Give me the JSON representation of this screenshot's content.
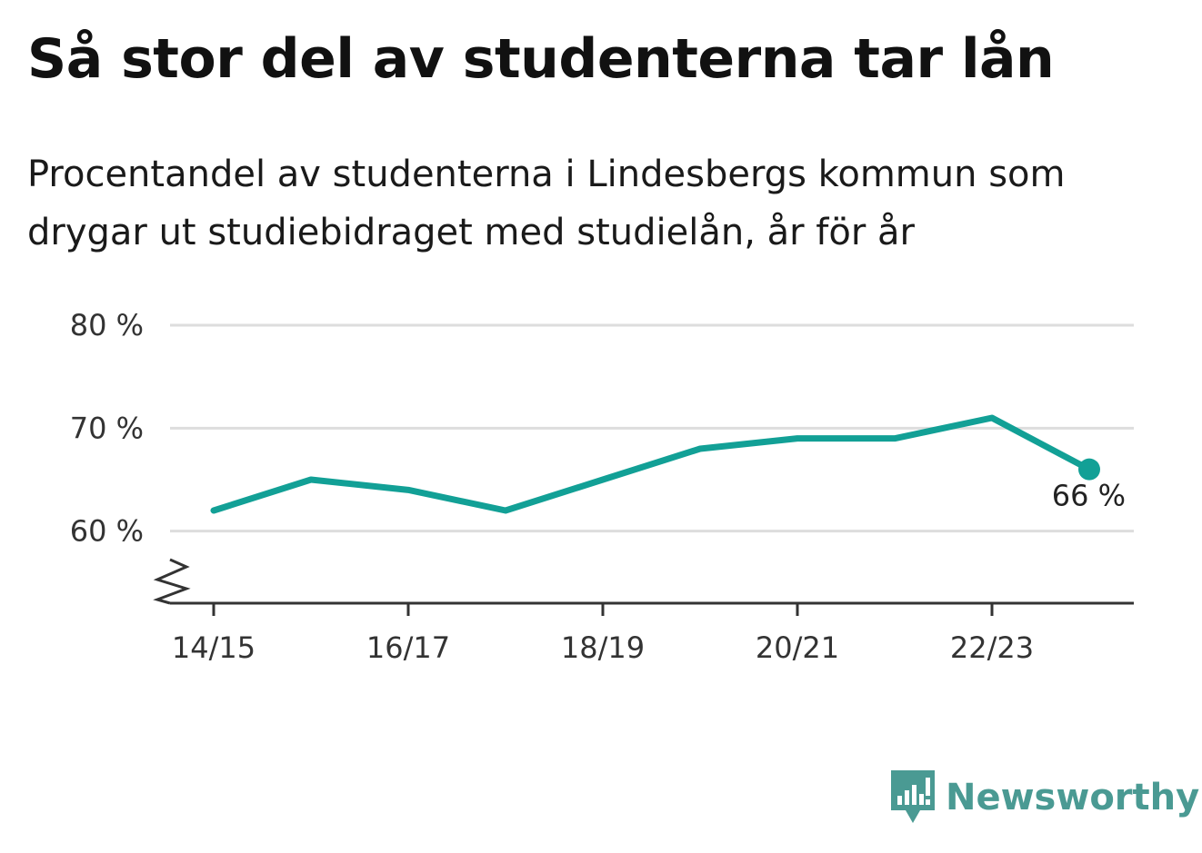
{
  "title": "Så stor del av studenterna tar lån",
  "subtitle": "Procentandel av studenterna i Lindesbergs kommun som drygar ut studiebidraget med studielån, år för år",
  "brand": {
    "name": "Newsworthy",
    "icon": "newsworthy-logo-icon",
    "color": "#4a9a93"
  },
  "chart_data": {
    "type": "line",
    "title": "Så stor del av studenterna tar lån",
    "subtitle": "Procentandel av studenterna i Lindesbergs kommun som drygar ut studiebidraget med studielån, år för år",
    "x": [
      "14/15",
      "15/16",
      "16/17",
      "17/18",
      "18/19",
      "19/20",
      "20/21",
      "21/22",
      "22/23",
      "23/24"
    ],
    "x_tick_labels": [
      "14/15",
      "16/17",
      "18/19",
      "20/21",
      "22/23"
    ],
    "series": [
      {
        "values": [
          62,
          65,
          64,
          62,
          65,
          68,
          69,
          69,
          71,
          66
        ],
        "color": "#12a096"
      }
    ],
    "ylim": [
      53,
      80
    ],
    "y_ticks": [
      60,
      70,
      80
    ],
    "y_tick_labels": [
      "60 %",
      "70 %",
      "80 %"
    ],
    "y_axis_break": true,
    "end_label": "66 %",
    "grid": true,
    "grid_color": "#dddddd",
    "xlabel": "",
    "ylabel": ""
  }
}
